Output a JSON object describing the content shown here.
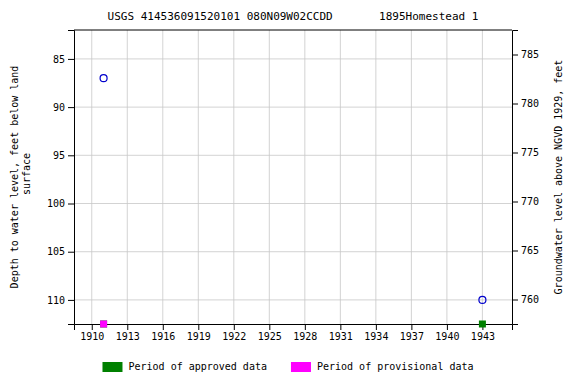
{
  "chart_data": {
    "type": "scatter",
    "title": "USGS 414536091520101 080N09W02CCDD       1895Homestead 1",
    "y_label": "Depth to water level, feet below land\n surface",
    "y2_label": "Groundwater level above NGVD 1929, feet",
    "xlim": [
      1908.5,
      1945.5
    ],
    "xticks": [
      1910,
      1913,
      1916,
      1919,
      1922,
      1925,
      1928,
      1931,
      1934,
      1937,
      1940,
      1943
    ],
    "ylim": [
      112.5,
      82.0
    ],
    "yticks": [
      85,
      90,
      95,
      100,
      105,
      110
    ],
    "y2lim": [
      757.5,
      787.5
    ],
    "y2ticks": [
      785,
      780,
      775,
      770,
      765,
      760
    ],
    "grid": true,
    "legend": "bottom",
    "series": [
      {
        "x": [
          1911.0,
          1943.0
        ],
        "values": [
          87.0,
          110.0
        ],
        "color": "#0000cc",
        "marker": "circle"
      },
      {
        "name": "Period of approved data",
        "x": [
          1911.0,
          1943.0
        ],
        "color": "#008000",
        "marker": "square"
      },
      {
        "name": "Period of provisional data",
        "x": [
          1911.0
        ],
        "color": "#ff00ff",
        "marker": "square"
      }
    ]
  }
}
